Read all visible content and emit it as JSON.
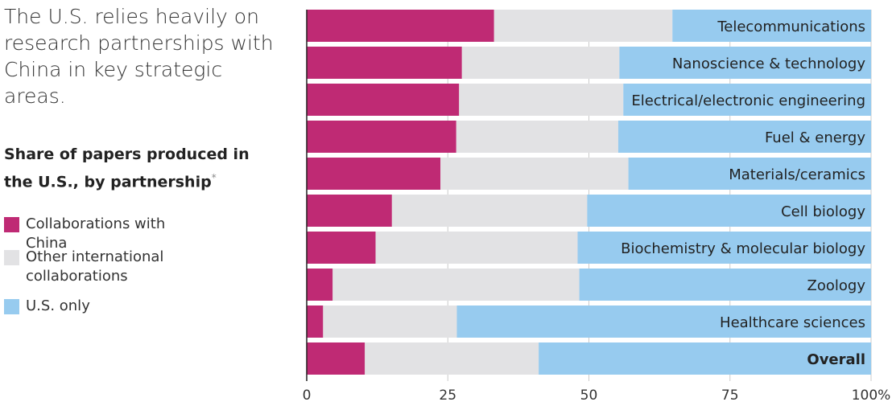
{
  "headline": "The U.S. relies heavily on research partnerships with China in key strategic areas.",
  "subtitle": "Share of papers produced in the U.S., by partnership",
  "footnote_marker": "*",
  "colors": {
    "china": "#bf2a74",
    "other": "#e2e2e4",
    "us": "#97cbef"
  },
  "chart_data": {
    "type": "bar",
    "orientation": "horizontal",
    "stacked": true,
    "xlim": [
      0,
      100
    ],
    "ticks": [
      "0",
      "25",
      "50",
      "75",
      "100%"
    ],
    "tick_values": [
      0,
      25,
      50,
      75,
      100
    ],
    "grid": true,
    "legend_placement": "left",
    "categories": [
      "Telecommunications",
      "Nanoscience & technology",
      "Electrical/electronic engineering",
      "Fuel & energy",
      "Materials/ceramics",
      "Cell biology",
      "Biochemistry & molecular biology",
      "Zoology",
      "Healthcare sciences",
      "Overall"
    ],
    "series": [
      {
        "name": "Collaborations with China",
        "values": [
          33.2,
          27.5,
          27,
          26.5,
          23.7,
          15.1,
          12.2,
          4.6,
          2.9,
          10.3
        ]
      },
      {
        "name": "Other international collaborations",
        "values": [
          31.6,
          27.9,
          29.1,
          28.7,
          33.3,
          34.6,
          35.8,
          43.7,
          23.7,
          30.8
        ]
      },
      {
        "name": "U.S. only",
        "values": [
          35.2,
          44.6,
          43.9,
          44.8,
          43,
          50.3,
          52,
          51.7,
          73.4,
          58.9
        ]
      }
    ]
  }
}
